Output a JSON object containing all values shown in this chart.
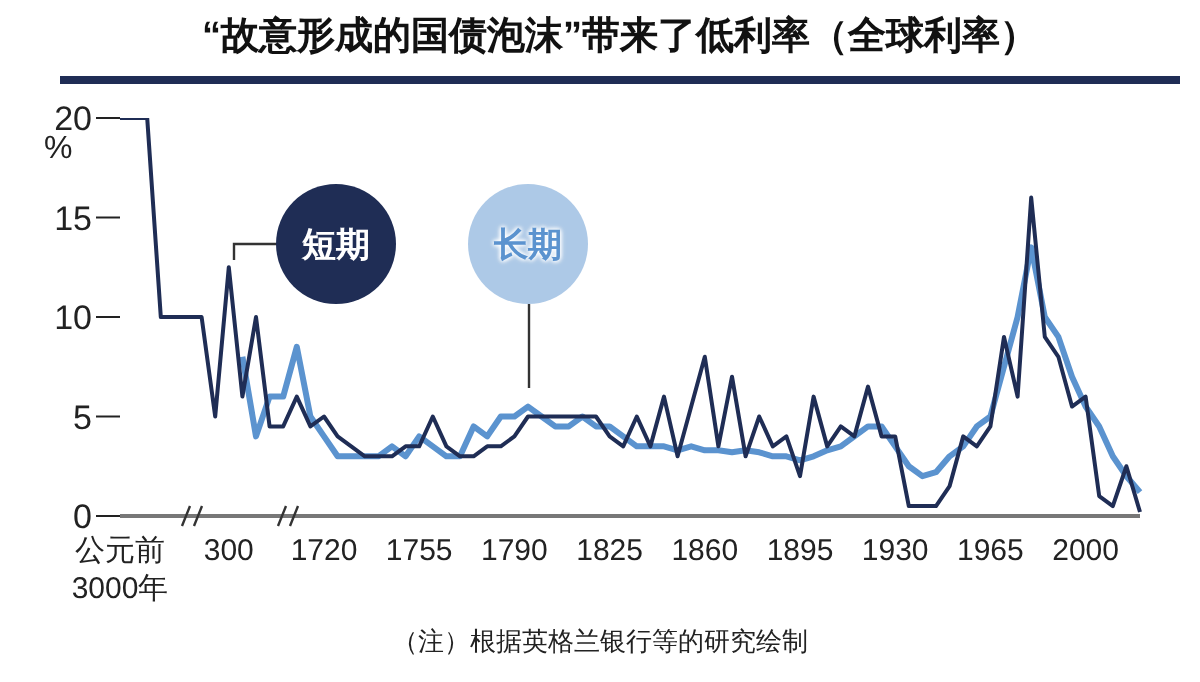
{
  "chart_data": {
    "type": "line",
    "title": "“故意形成的国债泡沫”带来了低利率（全球利率）",
    "ylabel": "%",
    "annotations": [
      "（注）根据英格兰银行等的研究绘制"
    ],
    "categories": [
      "公元前\n3000年",
      null,
      null,
      null,
      null,
      null,
      null,
      null,
      "300",
      null,
      null,
      null,
      null,
      null,
      null,
      "1720",
      null,
      null,
      null,
      null,
      null,
      null,
      "1755",
      null,
      null,
      null,
      null,
      null,
      null,
      "1790",
      null,
      null,
      null,
      null,
      null,
      null,
      "1825",
      null,
      null,
      null,
      null,
      null,
      null,
      "1860",
      null,
      null,
      null,
      null,
      null,
      null,
      "1895",
      null,
      null,
      null,
      null,
      null,
      null,
      "1930",
      null,
      null,
      null,
      null,
      null,
      null,
      "1965",
      null,
      null,
      null,
      null,
      null,
      null,
      "2000",
      null,
      null,
      null,
      null
    ],
    "series": [
      {
        "name": "短期",
        "color": "#1f2d55",
        "values": [
          20,
          20,
          20,
          10,
          10,
          10,
          10,
          5,
          12.5,
          6,
          10,
          4.5,
          4.5,
          6,
          4.5,
          5,
          4,
          3.5,
          3,
          3,
          3,
          3.5,
          3.5,
          5,
          3.5,
          3,
          3,
          3.5,
          3.5,
          4,
          5,
          5,
          5,
          5,
          5,
          5,
          4,
          3.5,
          5,
          3.5,
          6,
          3,
          5.5,
          8,
          3.5,
          7,
          3,
          5,
          3.5,
          4,
          2,
          6,
          3.5,
          4.5,
          4,
          6.5,
          4,
          4,
          0.5,
          0.5,
          0.5,
          1.5,
          4,
          3.5,
          4.5,
          9,
          6,
          16,
          9,
          8,
          5.5,
          6,
          1,
          0.5,
          2.5,
          0.2
        ]
      },
      {
        "name": "长期",
        "color": "#5b93cf",
        "values": [
          null,
          null,
          null,
          null,
          null,
          null,
          null,
          null,
          null,
          8,
          4,
          6,
          6,
          8.5,
          5,
          4,
          3,
          3,
          3,
          3,
          3.5,
          3,
          4,
          3.5,
          3,
          3,
          4.5,
          4,
          5,
          5,
          5.5,
          5,
          4.5,
          4.5,
          5,
          4.5,
          4.5,
          4,
          3.5,
          3.5,
          3.5,
          3.3,
          3.5,
          3.3,
          3.3,
          3.2,
          3.3,
          3.2,
          3,
          3,
          2.8,
          3,
          3.3,
          3.5,
          4,
          4.5,
          4.5,
          3.5,
          2.5,
          2,
          2.2,
          3,
          3.5,
          4.5,
          5,
          7.5,
          10,
          13.5,
          10,
          9,
          7,
          5.5,
          4.5,
          3,
          2,
          1.2
        ]
      }
    ],
    "ylim": [
      0,
      20
    ],
    "yticks": [
      0,
      5,
      10,
      15,
      20
    ],
    "marker": "none",
    "line_style": "solid"
  }
}
